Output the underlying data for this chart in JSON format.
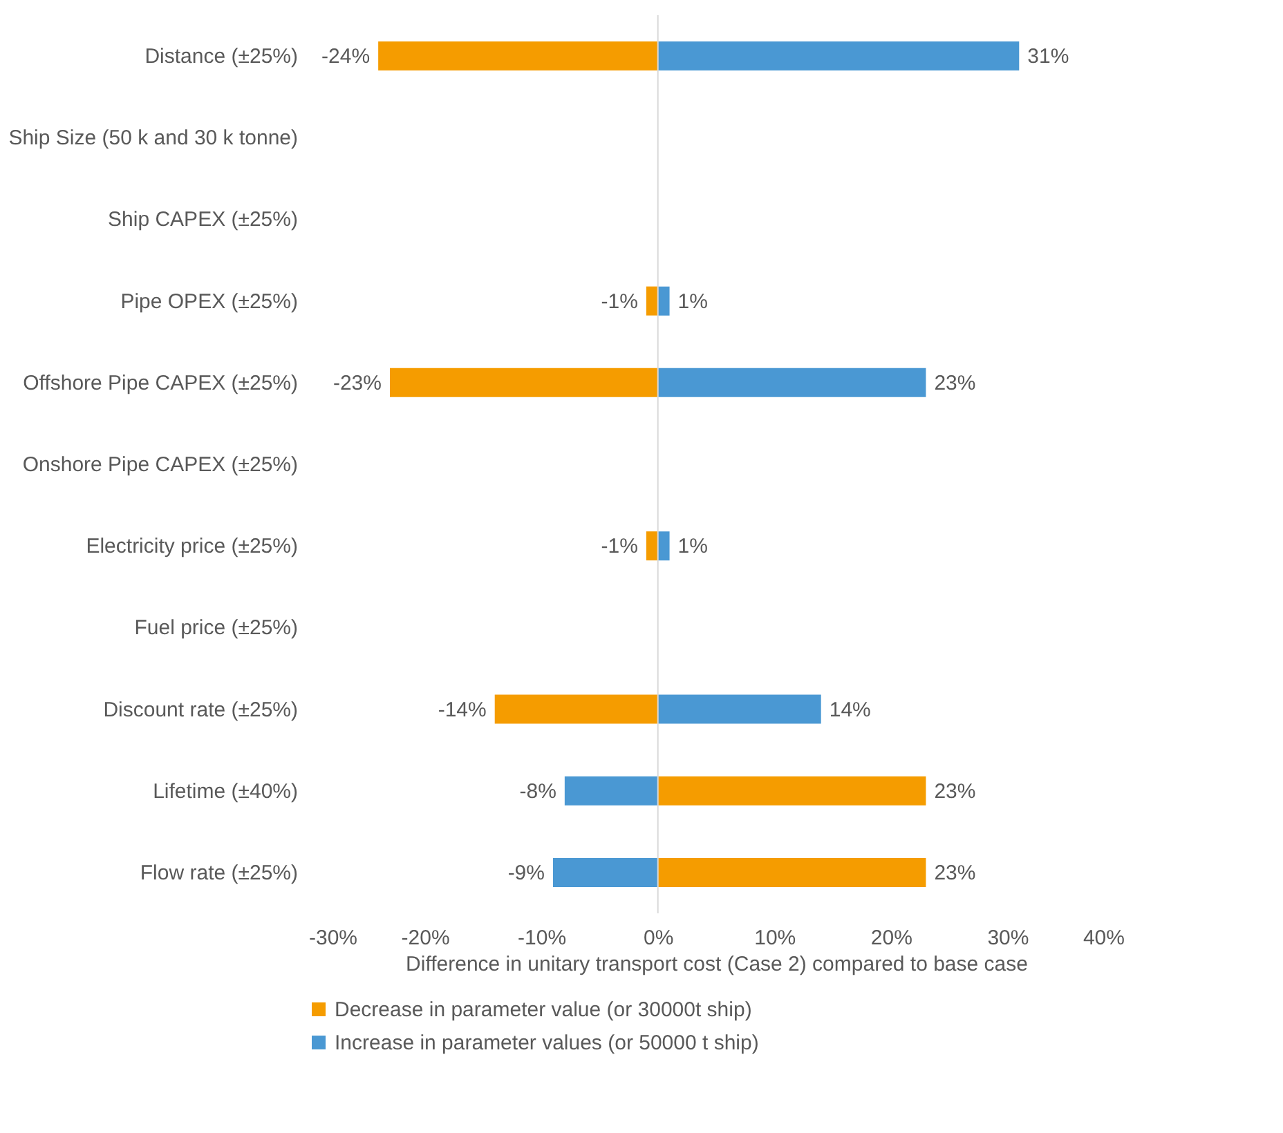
{
  "chart_data": {
    "type": "bar",
    "orientation": "horizontal",
    "xlabel": "Difference in unitary transport cost (Case 2) compared to base case",
    "categories": [
      "Distance (±25%)",
      "Ship Size (50 k and 30 k tonne)",
      "Ship CAPEX (±25%)",
      "Pipe OPEX (±25%)",
      "Offshore Pipe CAPEX (±25%)",
      "Onshore Pipe CAPEX (±25%)",
      "Electricity price  (±25%)",
      "Fuel price  (±25%)",
      "Discount rate (±25%)",
      "Lifetime (±40%)",
      "Flow rate (±25%)"
    ],
    "series": [
      {
        "name": "Decrease in parameter value (or 30000t ship)",
        "color": "#f59c00",
        "colors": [
          "#f59c00",
          null,
          null,
          "#f59c00",
          "#f59c00",
          null,
          "#f59c00",
          null,
          "#f59c00",
          "#f59c00",
          "#f59c00"
        ],
        "values": [
          -24,
          null,
          null,
          -1,
          -23,
          null,
          -1,
          null,
          -14,
          23,
          23
        ],
        "value_labels": [
          "-24%",
          null,
          null,
          "-1%",
          "-23%",
          null,
          "-1%",
          null,
          "-14%",
          "23%",
          "23%"
        ]
      },
      {
        "name": "Increase in parameter values (or 50000 t ship)",
        "color": "#4a98d3",
        "colors": [
          "#4a98d3",
          null,
          null,
          "#4a98d3",
          "#4a98d3",
          null,
          "#4a98d3",
          null,
          "#4a98d3",
          "#4a98d3",
          "#4a98d3"
        ],
        "values": [
          31,
          null,
          null,
          1,
          23,
          null,
          1,
          null,
          14,
          -8,
          -9
        ],
        "value_labels": [
          "31%",
          null,
          null,
          "1%",
          "23%",
          null,
          "1%",
          null,
          "14%",
          "-8%",
          "-9%"
        ]
      }
    ],
    "xlim": [
      -30,
      40
    ],
    "xticks": [
      {
        "value": -30,
        "label": "-30%"
      },
      {
        "value": -20,
        "label": "-20%"
      },
      {
        "value": -10,
        "label": "-10%"
      },
      {
        "value": 0,
        "label": "0%"
      },
      {
        "value": 10,
        "label": "10%"
      },
      {
        "value": 20,
        "label": "20%"
      },
      {
        "value": 30,
        "label": "30%"
      },
      {
        "value": 40,
        "label": "40%"
      }
    ],
    "ref_lines": [
      {
        "axis": "x",
        "value": 0,
        "color": "#d9d9d9"
      }
    ],
    "stacked": true,
    "grid": false,
    "legend": "bottom"
  }
}
